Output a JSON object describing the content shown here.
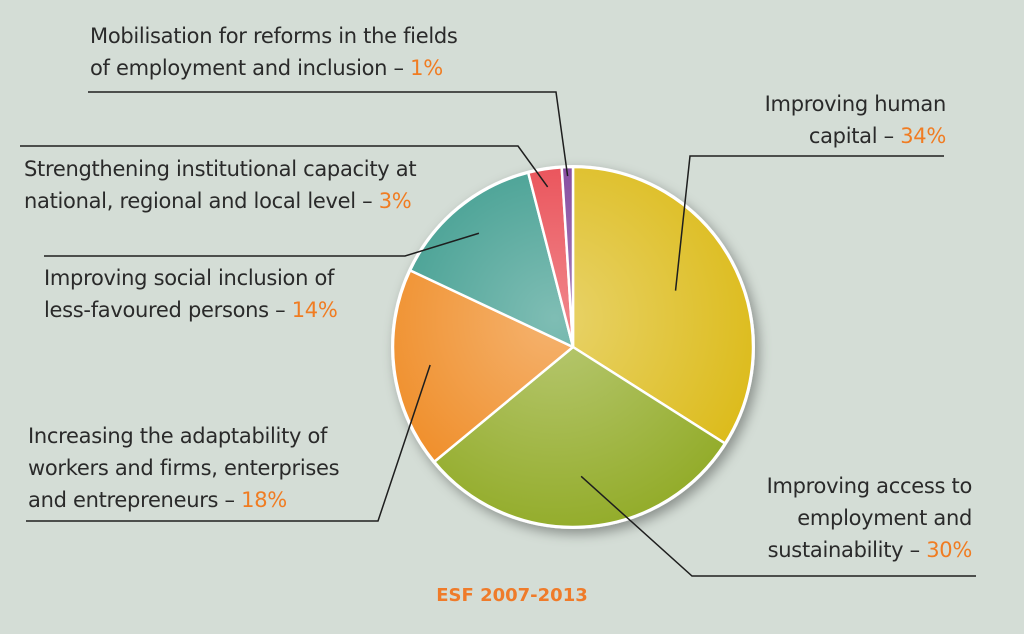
{
  "chart_data": {
    "type": "pie",
    "title": "ESF 2007-2013",
    "slices": [
      {
        "lines": [
          "Improving human",
          "capital – "
        ],
        "pct_label": "34%",
        "value": 34,
        "color": "#dcbb1a"
      },
      {
        "lines": [
          "Improving access to",
          "employment and",
          "sustainability – "
        ],
        "pct_label": "30%",
        "value": 30,
        "color": "#93ac2a"
      },
      {
        "lines": [
          "Increasing the adaptability of",
          "workers and firms, enterprises",
          "and entrepreneurs – "
        ],
        "pct_label": "18%",
        "value": 18,
        "color": "#ef8a22"
      },
      {
        "lines": [
          "Improving social inclusion of",
          "less-favoured persons – "
        ],
        "pct_label": "14%",
        "value": 14,
        "color": "#3a9a8c"
      },
      {
        "lines": [
          "Strengthening institutional capacity at",
          "national, regional and local level – "
        ],
        "pct_label": "3%",
        "value": 3,
        "color": "#e8424a"
      },
      {
        "lines": [
          "Mobilisation for reforms in the fields",
          "of employment and inclusion – "
        ],
        "pct_label": "1%",
        "value": 1,
        "color": "#7a3a96"
      }
    ]
  }
}
